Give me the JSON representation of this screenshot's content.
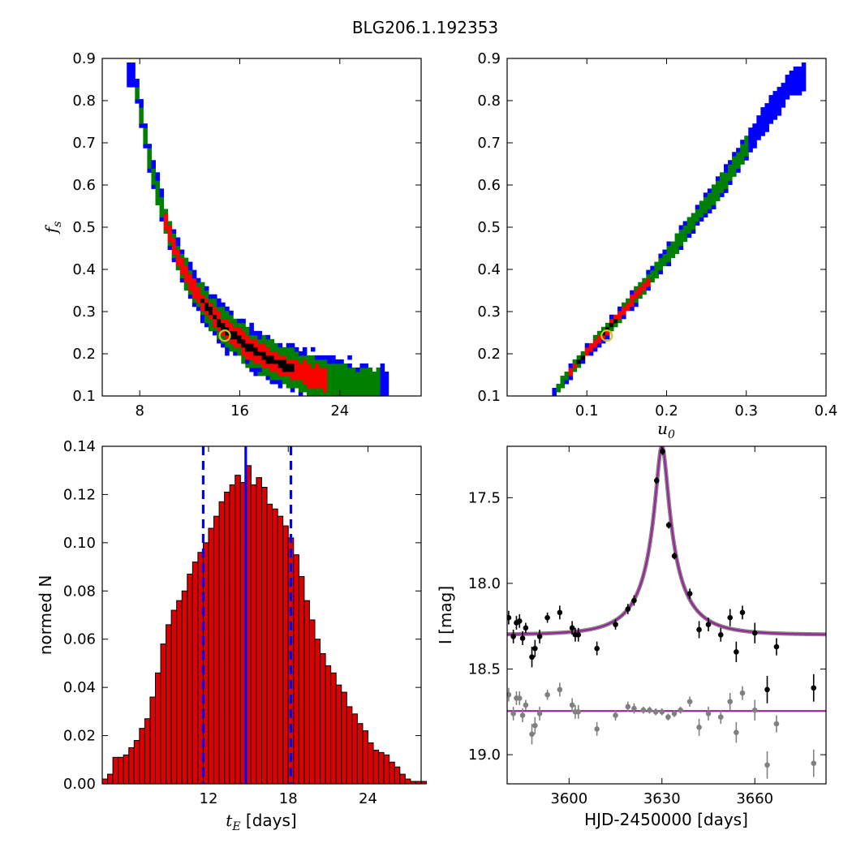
{
  "figure_title": "BLG206.1.192353",
  "colors": {
    "sigma3": "#0000ff",
    "sigma2": "#008000",
    "sigma1": "#ff0000",
    "best": "#000000",
    "marker": "#c8c81e",
    "model": "#9b239b",
    "hist": "#dd0000"
  },
  "chart_data": [
    {
      "id": "tE_fs",
      "type": "heatmap",
      "title": "",
      "xlabel": "",
      "ylabel": "f",
      "ylabel_sub": "s",
      "xlim": [
        5,
        30.5
      ],
      "ylim": [
        0.1,
        0.9
      ],
      "xticks": [
        8,
        16,
        24
      ],
      "yticks": [
        0.1,
        0.2,
        0.3,
        0.4,
        0.5,
        0.6,
        0.7,
        0.8,
        0.9
      ],
      "levels": [
        "3-sigma",
        "2-sigma",
        "1-sigma",
        "best"
      ],
      "best_fit": {
        "tE": 14.8,
        "fs": 0.243
      },
      "ridge": [
        [
          7.5,
          0.86
        ],
        [
          8.2,
          0.75
        ],
        [
          9.0,
          0.63
        ],
        [
          10.0,
          0.52
        ],
        [
          11.0,
          0.43
        ],
        [
          12.2,
          0.36
        ],
        [
          13.5,
          0.305
        ],
        [
          15.0,
          0.255
        ],
        [
          17.0,
          0.21
        ],
        [
          19.0,
          0.18
        ],
        [
          21.0,
          0.155
        ],
        [
          23.0,
          0.14
        ],
        [
          25.0,
          0.125
        ],
        [
          27.5,
          0.11
        ]
      ]
    },
    {
      "id": "u0_fs",
      "type": "heatmap",
      "title": "",
      "xlabel": "u",
      "xlabel_sub": "0",
      "ylabel": "",
      "xlim": [
        0.0,
        0.4
      ],
      "ylim": [
        0.1,
        0.9
      ],
      "xticks": [
        0.1,
        0.2,
        0.3,
        0.4
      ],
      "yticks": [
        0.1,
        0.2,
        0.3,
        0.4,
        0.5,
        0.6,
        0.7,
        0.8,
        0.9
      ],
      "levels": [
        "3-sigma",
        "2-sigma",
        "1-sigma",
        "best"
      ],
      "best_fit": {
        "u0": 0.125,
        "fs": 0.243
      },
      "ridge": [
        [
          0.06,
          0.11
        ],
        [
          0.08,
          0.16
        ],
        [
          0.1,
          0.205
        ],
        [
          0.12,
          0.245
        ],
        [
          0.14,
          0.29
        ],
        [
          0.16,
          0.335
        ],
        [
          0.18,
          0.38
        ],
        [
          0.2,
          0.43
        ],
        [
          0.22,
          0.48
        ],
        [
          0.24,
          0.53
        ],
        [
          0.26,
          0.58
        ],
        [
          0.28,
          0.63
        ],
        [
          0.3,
          0.69
        ],
        [
          0.32,
          0.75
        ],
        [
          0.34,
          0.8
        ],
        [
          0.36,
          0.85
        ]
      ]
    },
    {
      "id": "tE_hist",
      "type": "bar",
      "title": "",
      "xlabel": "t",
      "xlabel_sub": "E",
      "xlabel_rest": " [days]",
      "ylabel": "normed N",
      "xlim": [
        4.0,
        28.0
      ],
      "ylim": [
        0.0,
        0.14
      ],
      "xticks": [
        12,
        18,
        24
      ],
      "yticks": [
        "0.00",
        "0.02",
        "0.04",
        "0.06",
        "0.08",
        "0.10",
        "0.12",
        "0.14"
      ],
      "bin_start": 4.0,
      "bin_width": 0.4,
      "values": [
        0.002,
        0.004,
        0.011,
        0.011,
        0.012,
        0.015,
        0.018,
        0.023,
        0.027,
        0.036,
        0.046,
        0.058,
        0.066,
        0.072,
        0.076,
        0.08,
        0.087,
        0.092,
        0.096,
        0.1,
        0.106,
        0.111,
        0.117,
        0.121,
        0.124,
        0.128,
        0.125,
        0.132,
        0.124,
        0.127,
        0.123,
        0.116,
        0.114,
        0.111,
        0.107,
        0.102,
        0.095,
        0.086,
        0.076,
        0.068,
        0.06,
        0.054,
        0.049,
        0.046,
        0.041,
        0.038,
        0.032,
        0.029,
        0.025,
        0.022,
        0.017,
        0.014,
        0.013,
        0.012,
        0.009,
        0.007,
        0.004,
        0.002,
        0.001,
        0.001,
        0.001
      ],
      "median": 14.8,
      "lower": 11.6,
      "upper": 18.2
    },
    {
      "id": "lightcurve",
      "type": "scatter",
      "title": "",
      "xlabel": "HJD-2450000 [days]",
      "ylabel": "I [mag]",
      "xlim": [
        3580,
        3683
      ],
      "ylim": [
        19.17,
        17.2
      ],
      "xticks": [
        3600,
        3630,
        3660
      ],
      "yticks": [
        "17.5",
        "18.0",
        "18.5",
        "19.0"
      ],
      "model": {
        "t0": 3630.0,
        "u0": 0.125,
        "tE": 14.8,
        "base_mag": 18.3,
        "peak_mag": 17.2
      },
      "residual_baseline": 18.745,
      "points_black": [
        [
          3580.5,
          18.2,
          0.04
        ],
        [
          3582,
          18.31,
          0.04
        ],
        [
          3583,
          18.23,
          0.04
        ],
        [
          3584,
          18.22,
          0.04
        ],
        [
          3585,
          18.32,
          0.04
        ],
        [
          3586,
          18.26,
          0.03
        ],
        [
          3588,
          18.43,
          0.06
        ],
        [
          3589,
          18.38,
          0.05
        ],
        [
          3590.5,
          18.31,
          0.04
        ],
        [
          3593,
          18.2,
          0.03
        ],
        [
          3597,
          18.17,
          0.04
        ],
        [
          3601,
          18.26,
          0.04
        ],
        [
          3602,
          18.3,
          0.04
        ],
        [
          3603,
          18.3,
          0.04
        ],
        [
          3609,
          18.38,
          0.04
        ],
        [
          3615,
          18.24,
          0.03
        ],
        [
          3619,
          18.15,
          0.03
        ],
        [
          3621,
          18.1,
          0.03
        ],
        [
          3628.3,
          17.4,
          0.02
        ],
        [
          3630.2,
          17.23,
          0.02
        ],
        [
          3632.2,
          17.66,
          0.02
        ],
        [
          3634,
          17.84,
          0.02
        ],
        [
          3639,
          18.06,
          0.03
        ],
        [
          3642,
          18.27,
          0.05
        ],
        [
          3645,
          18.24,
          0.04
        ],
        [
          3649,
          18.3,
          0.04
        ],
        [
          3652,
          18.2,
          0.05
        ],
        [
          3654,
          18.4,
          0.06
        ],
        [
          3656,
          18.17,
          0.04
        ],
        [
          3660,
          18.29,
          0.06
        ],
        [
          3664,
          18.62,
          0.08
        ],
        [
          3667,
          18.37,
          0.05
        ],
        [
          3679,
          18.61,
          0.08
        ]
      ],
      "points_gray": [
        [
          3580.5,
          18.65,
          0.04
        ],
        [
          3582,
          18.76,
          0.04
        ],
        [
          3583,
          18.67,
          0.04
        ],
        [
          3584,
          18.67,
          0.04
        ],
        [
          3585,
          18.77,
          0.04
        ],
        [
          3586,
          18.71,
          0.03
        ],
        [
          3588,
          18.88,
          0.06
        ],
        [
          3589,
          18.83,
          0.05
        ],
        [
          3590.5,
          18.76,
          0.04
        ],
        [
          3593,
          18.65,
          0.03
        ],
        [
          3597,
          18.62,
          0.04
        ],
        [
          3601,
          18.71,
          0.04
        ],
        [
          3602,
          18.75,
          0.04
        ],
        [
          3603,
          18.75,
          0.04
        ],
        [
          3609,
          18.85,
          0.04
        ],
        [
          3615,
          18.77,
          0.03
        ],
        [
          3619,
          18.72,
          0.03
        ],
        [
          3621,
          18.73,
          0.03
        ],
        [
          3624,
          18.74,
          0.02
        ],
        [
          3626,
          18.74,
          0.02
        ],
        [
          3628,
          18.75,
          0.02
        ],
        [
          3630,
          18.75,
          0.02
        ],
        [
          3632,
          18.78,
          0.02
        ],
        [
          3634,
          18.76,
          0.02
        ],
        [
          3636,
          18.74,
          0.02
        ],
        [
          3639,
          18.69,
          0.03
        ],
        [
          3642,
          18.84,
          0.05
        ],
        [
          3645,
          18.76,
          0.04
        ],
        [
          3649,
          18.78,
          0.04
        ],
        [
          3652,
          18.69,
          0.05
        ],
        [
          3654,
          18.87,
          0.06
        ],
        [
          3656,
          18.64,
          0.04
        ],
        [
          3660,
          18.74,
          0.06
        ],
        [
          3664,
          19.06,
          0.08
        ],
        [
          3667,
          18.82,
          0.05
        ],
        [
          3679,
          19.05,
          0.08
        ]
      ]
    }
  ]
}
